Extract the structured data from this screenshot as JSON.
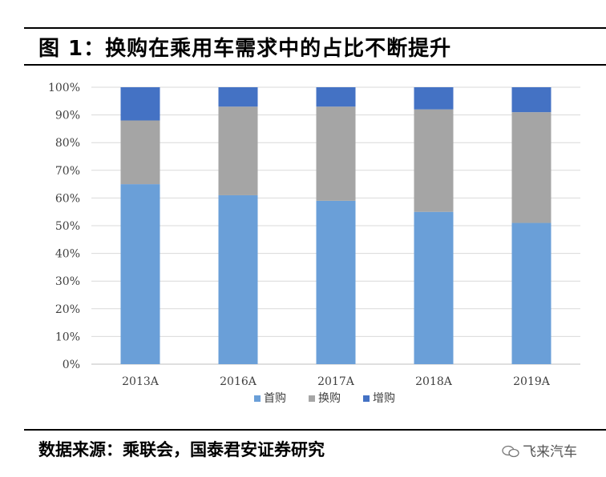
{
  "figure": {
    "title": "图 1：换购在乘用车需求中的占比不断提升",
    "source": "数据来源：乘联会，国泰君安证券研究",
    "watermark": "飞来汽车"
  },
  "chart_data": {
    "type": "bar",
    "stacked": true,
    "categories": [
      "2013A",
      "2016A",
      "2017A",
      "2018A",
      "2019A"
    ],
    "series": [
      {
        "name": "首购",
        "values": [
          65,
          61,
          59,
          55,
          51
        ],
        "color": "#6A9FD8"
      },
      {
        "name": "换购",
        "values": [
          23,
          32,
          34,
          37,
          40
        ],
        "color": "#A5A5A5"
      },
      {
        "name": "增购",
        "values": [
          12,
          7,
          7,
          8,
          9
        ],
        "color": "#4472C4"
      }
    ],
    "ylim": [
      0,
      100
    ],
    "yticks": [
      "0%",
      "10%",
      "20%",
      "30%",
      "40%",
      "50%",
      "60%",
      "70%",
      "80%",
      "90%",
      "100%"
    ],
    "grid": true,
    "legend_position": "bottom"
  }
}
